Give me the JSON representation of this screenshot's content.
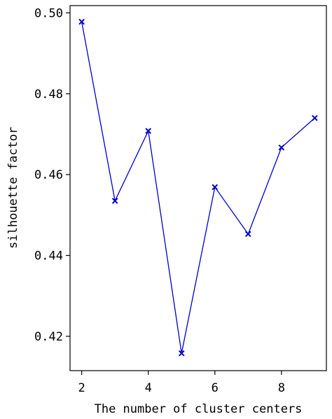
{
  "chart_data": {
    "type": "line",
    "title": "",
    "xlabel": "The number of cluster centers",
    "ylabel": "silhouette factor",
    "xlim": [
      1.65,
      9.35
    ],
    "ylim": [
      0.4115,
      0.5018
    ],
    "xticks": [
      2,
      4,
      6,
      8
    ],
    "yticks": [
      0.42,
      0.44,
      0.46,
      0.48,
      0.5
    ],
    "ytick_labels": [
      "0.42",
      "0.44",
      "0.46",
      "0.48",
      "0.50"
    ],
    "xtick_labels": [
      "2",
      "4",
      "6",
      "8"
    ],
    "grid": false,
    "series": [
      {
        "color": "#0000cc",
        "marker": "x",
        "x": [
          2,
          3,
          4,
          5,
          6,
          7,
          8,
          9
        ],
        "y": [
          0.4978,
          0.4535,
          0.4708,
          0.4158,
          0.4569,
          0.4453,
          0.4667,
          0.474
        ]
      }
    ]
  }
}
